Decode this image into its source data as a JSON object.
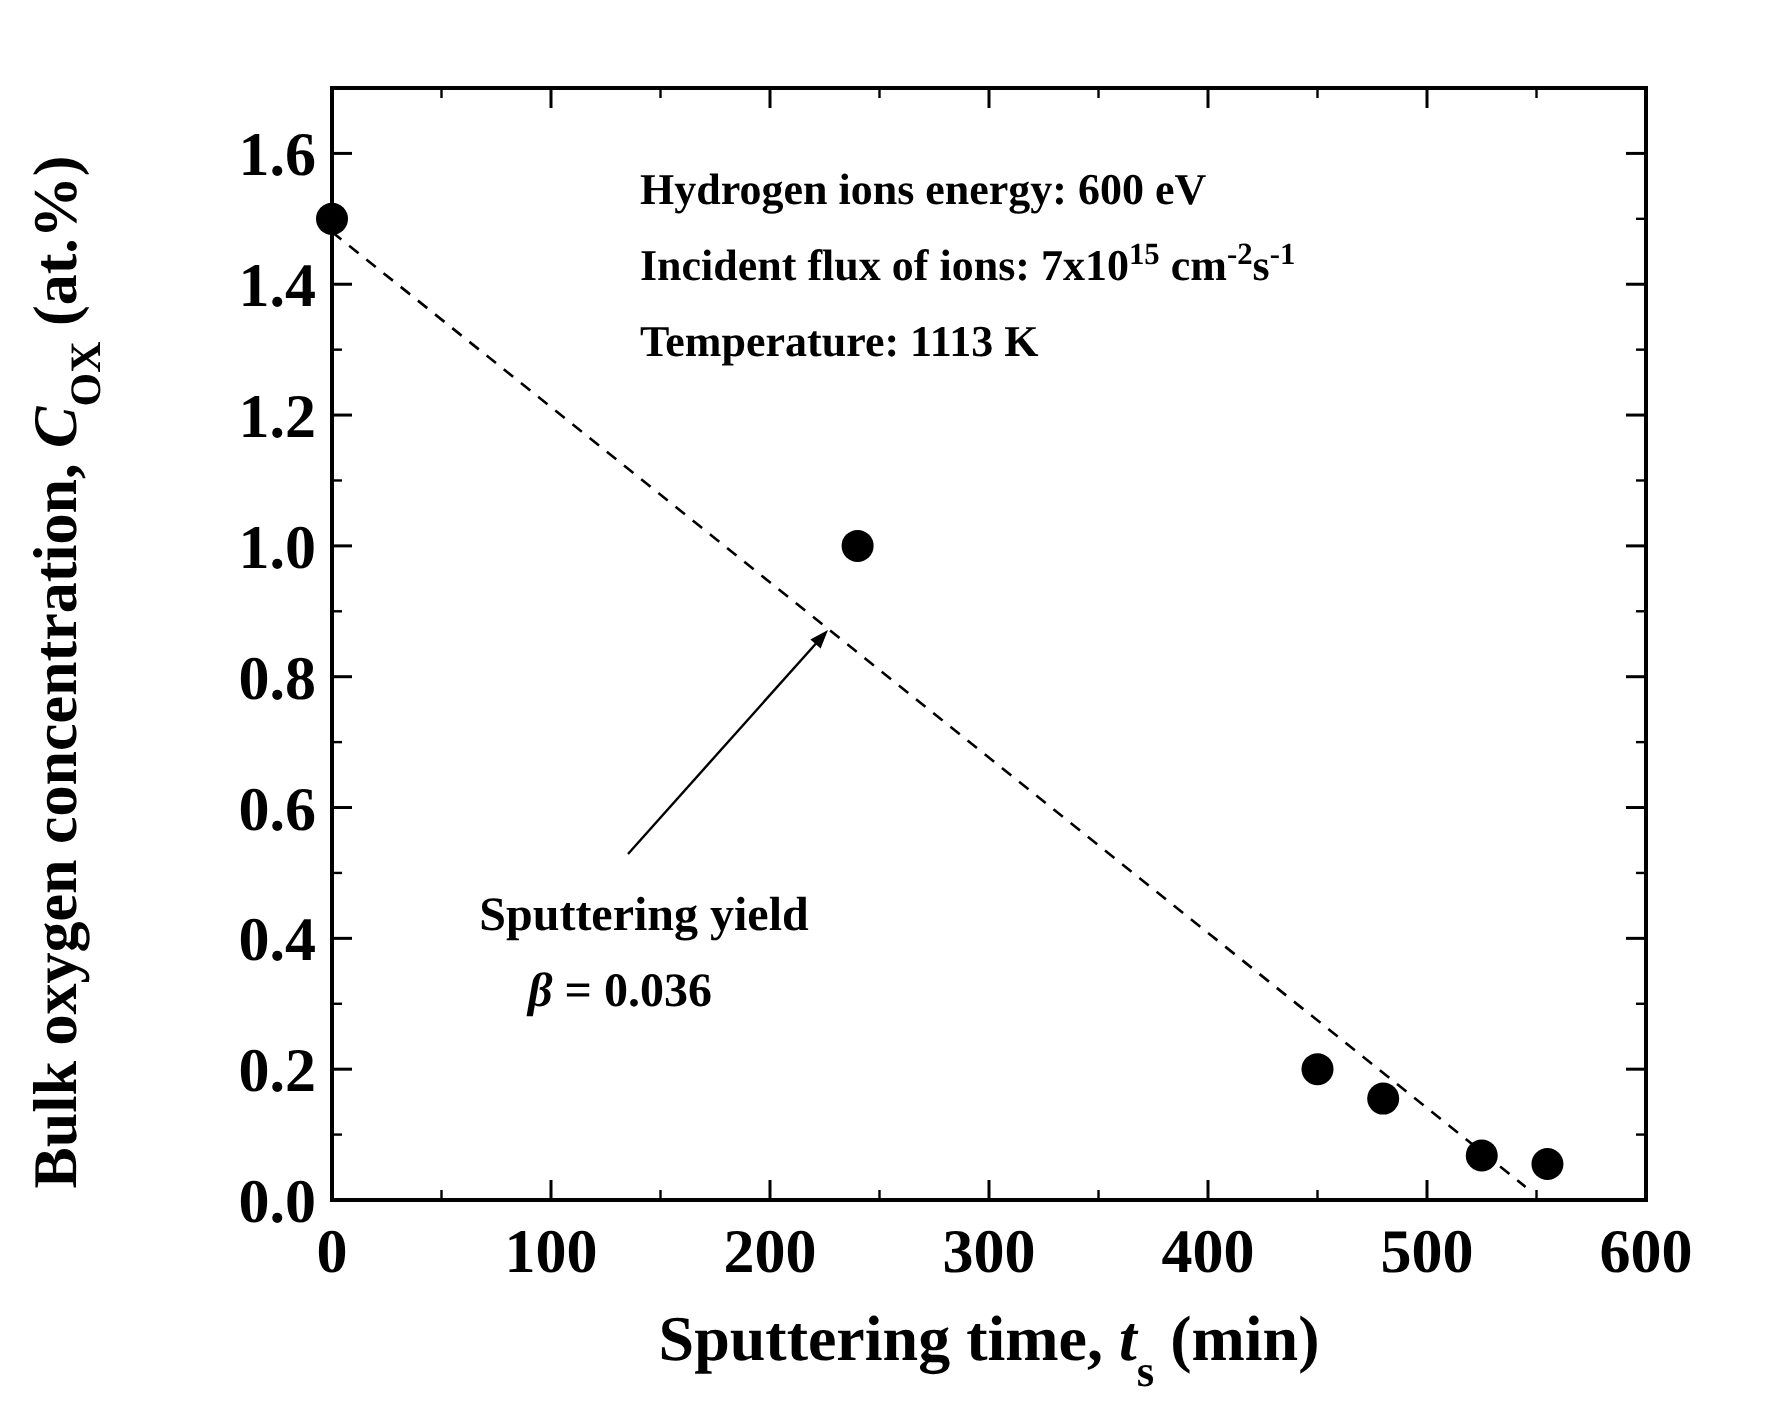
{
  "chart_data": {
    "type": "scatter",
    "xlabel": "Sputtering time, t$_{s}$ (min)",
    "ylabel": "Bulk oxygen concentration, C$_{OX}$ (at.%)",
    "xlim": [
      0,
      600
    ],
    "xticks": [
      0,
      100,
      200,
      300,
      400,
      500,
      600
    ],
    "ylim": [
      0,
      1.7
    ],
    "yticks": [
      {
        "value": 0,
        "label": "0.0"
      },
      1.6,
      1.4,
      1.2,
      {
        "value": 1,
        "label": "1.0"
      },
      0.8,
      0.6,
      0.4,
      0.2
    ],
    "grid": false,
    "series": [
      {
        "color": "#000000",
        "marker": "circle",
        "x": [
          0,
          240,
          450,
          480,
          525,
          555
        ],
        "values": [
          1.5,
          1.0,
          0.2,
          0.155,
          0.068,
          0.055
        ]
      },
      {
        "type": "line",
        "color": "#000000",
        "line_style": "dashed",
        "x": [
          0,
          545
        ],
        "values": [
          1.48,
          0.02
        ]
      }
    ],
    "annotations": [
      "Hydrogen ions energy: 600 eV",
      "Incident flux of ions: 7x10$^{15}$ cm$^{-2}$s$^{-1}$",
      "Temperature: 1113 K",
      "Sputtering yield",
      "β = 0.036"
    ]
  }
}
